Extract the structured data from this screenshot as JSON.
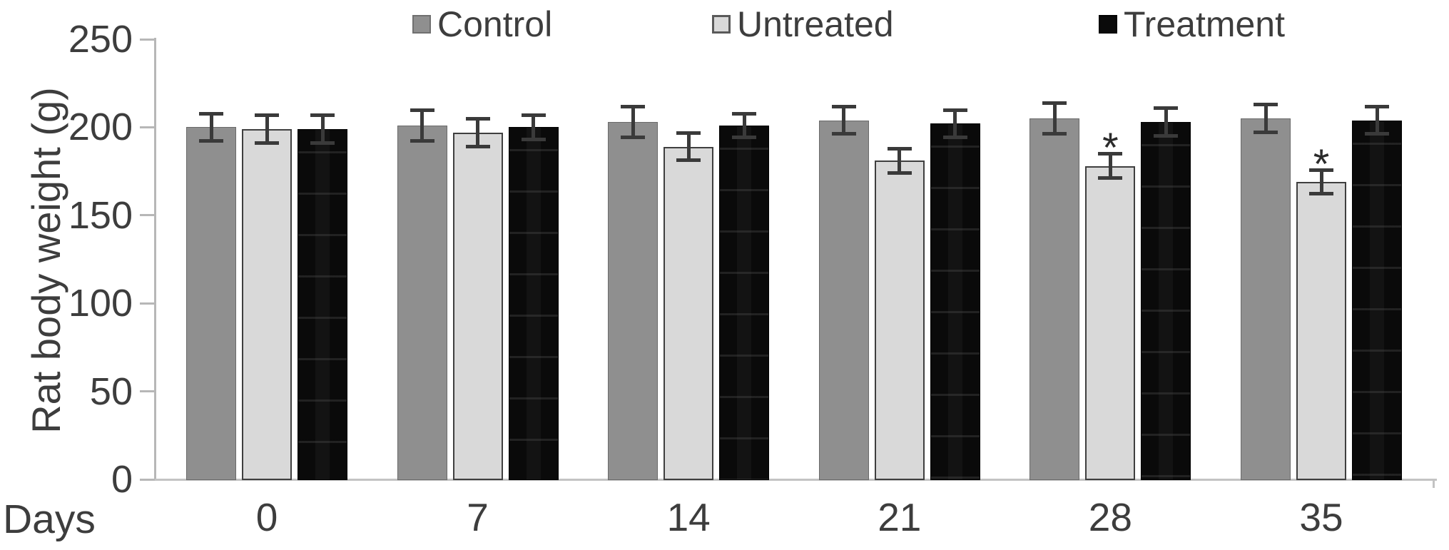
{
  "figure": {
    "background": "#ffffff",
    "text_color": "#3d3d3d",
    "axis_color": "#b7b7b7",
    "error_bar_color": "#3a3a3a"
  },
  "chart_data": {
    "type": "bar",
    "title": "",
    "xlabel": "Days",
    "ylabel": "Rat body weight (g)",
    "ylim": [
      0,
      250
    ],
    "yticks": [
      0,
      50,
      100,
      150,
      200,
      250
    ],
    "categories": [
      "0",
      "7",
      "14",
      "21",
      "28",
      "35"
    ],
    "grid": false,
    "legend_position": "top",
    "error_bars": true,
    "significance_marker": "*",
    "series": [
      {
        "name": "Control",
        "color": "#8f8f8f",
        "values": [
          200,
          201,
          203,
          204,
          205,
          205
        ],
        "errors": [
          8,
          9,
          9,
          8,
          9,
          8
        ],
        "sig": [
          "",
          "",
          "",
          "",
          "",
          ""
        ]
      },
      {
        "name": "Untreated",
        "color": "#d9d9d9",
        "values": [
          199,
          197,
          189,
          181,
          178,
          169
        ],
        "errors": [
          8,
          8,
          8,
          7,
          7,
          7
        ],
        "sig": [
          "",
          "",
          "",
          "",
          "*",
          "*"
        ]
      },
      {
        "name": "Treatment",
        "color": "#0a0a0a",
        "values": [
          199,
          200,
          201,
          202,
          203,
          204
        ],
        "errors": [
          8,
          7,
          7,
          8,
          8,
          8
        ],
        "sig": [
          "",
          "",
          "",
          "",
          "",
          ""
        ]
      }
    ]
  }
}
